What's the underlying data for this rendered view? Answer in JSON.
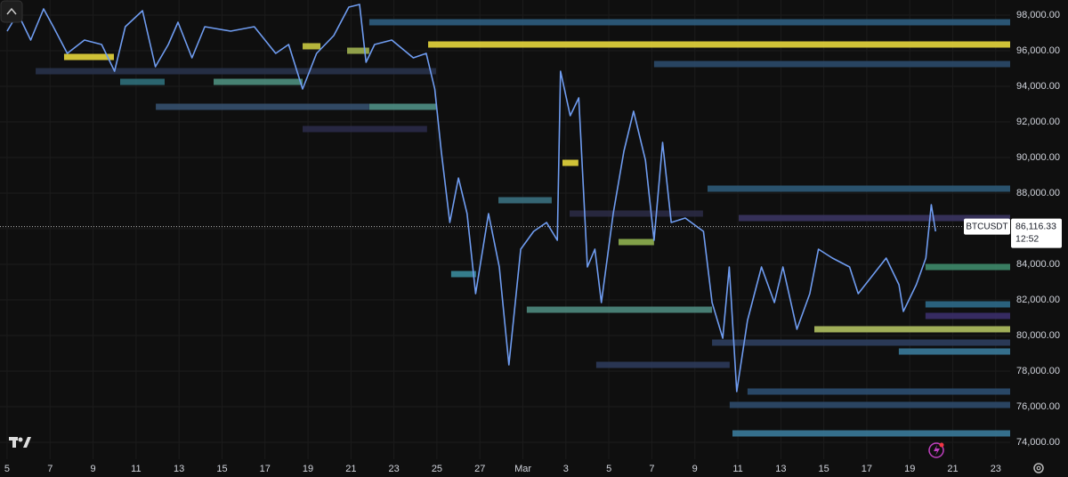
{
  "chart_data": {
    "type": "line",
    "symbol": "BTCUSDT",
    "last_price": {
      "value": 86116.33,
      "label": "86,116.33"
    },
    "countdown": "12:52",
    "color": "#6f9cf0",
    "x": [
      0,
      0.5,
      1.1,
      1.7,
      2.15,
      2.8,
      3.6,
      4.4,
      5.0,
      5.5,
      6.3,
      6.9,
      7.5,
      7.95,
      8.6,
      9.2,
      10.4,
      11.5,
      12.5,
      13.1,
      13.75,
      14.4,
      15.2,
      15.9,
      16.4,
      16.7,
      17.1,
      17.9,
      18.9,
      19.5,
      19.9,
      20.2,
      20.6,
      21.0,
      21.4,
      21.8,
      22.4,
      22.9,
      23.35,
      23.9,
      24.5,
      25.1,
      25.6,
      25.75,
      26.2,
      26.6,
      27.0,
      27.35,
      27.65,
      28.2,
      28.7,
      29.15,
      29.7,
      30.1,
      30.5,
      30.9,
      31.55,
      32.4,
      32.8,
      33.3,
      33.6,
      33.95,
      34.45,
      35.1,
      35.7,
      36.1,
      36.75,
      37.35,
      37.75,
      38.4,
      39.2,
      39.6,
      40.25,
      40.9,
      41.5,
      41.7,
      42.3,
      42.75,
      43.0,
      43.2
    ],
    "values": [
      97100,
      98100,
      96600,
      98350,
      97350,
      95850,
      96600,
      96350,
      94850,
      97350,
      98250,
      95100,
      96350,
      97600,
      95600,
      97350,
      97100,
      97350,
      95850,
      96350,
      93850,
      95850,
      96850,
      98450,
      98600,
      95350,
      96350,
      96600,
      95600,
      95850,
      93850,
      90350,
      86350,
      88850,
      86850,
      82350,
      86850,
      83850,
      78350,
      84850,
      85850,
      86350,
      85350,
      94850,
      92350,
      93350,
      83850,
      84850,
      81850,
      86850,
      90350,
      92600,
      89850,
      85350,
      90850,
      86350,
      86600,
      85850,
      81850,
      79850,
      83850,
      76850,
      80850,
      83850,
      81850,
      83850,
      80350,
      82350,
      84850,
      84350,
      83850,
      82350,
      83350,
      84350,
      82850,
      81350,
      82850,
      84350,
      87350,
      85850
    ],
    "levels": [
      {
        "price": 96350,
        "start": 19.59,
        "end": 46.67,
        "color": "#e6d63c"
      },
      {
        "price": 95650,
        "start": 2.65,
        "end": 4.97,
        "color": "#e6d63c"
      },
      {
        "price": 97600,
        "start": 16.85,
        "end": 46.67,
        "color": "#2e5d80"
      },
      {
        "price": 95250,
        "start": 30.1,
        "end": 46.67,
        "color": "#2b4a6a"
      },
      {
        "price": 94250,
        "start": 5.26,
        "end": 7.33,
        "color": "#2f6f7a"
      },
      {
        "price": 94250,
        "start": 9.61,
        "end": 13.75,
        "color": "#4e8f7e"
      },
      {
        "price": 92850,
        "start": 16.85,
        "end": 19.96,
        "color": "#4f8f85"
      },
      {
        "price": 92850,
        "start": 6.92,
        "end": 16.85,
        "color": "#35506e"
      },
      {
        "price": 96000,
        "start": 15.82,
        "end": 16.85,
        "color": "#9fb050"
      },
      {
        "price": 96250,
        "start": 13.75,
        "end": 14.58,
        "color": "#c8c840"
      },
      {
        "price": 89700,
        "start": 25.84,
        "end": 26.58,
        "color": "#e6d63c"
      },
      {
        "price": 87600,
        "start": 22.86,
        "end": 25.34,
        "color": "#3a7080"
      },
      {
        "price": 88250,
        "start": 32.59,
        "end": 46.67,
        "color": "#2e5a78"
      },
      {
        "price": 83850,
        "start": 42.73,
        "end": 46.67,
        "color": "#3e8a6a"
      },
      {
        "price": 85250,
        "start": 28.45,
        "end": 30.1,
        "color": "#8fb050"
      },
      {
        "price": 83450,
        "start": 20.66,
        "end": 21.82,
        "color": "#3a8a9a"
      },
      {
        "price": 81450,
        "start": 24.18,
        "end": 32.8,
        "color": "#4e8a7e"
      },
      {
        "price": 81750,
        "start": 42.73,
        "end": 46.67,
        "color": "#2e6a8a"
      },
      {
        "price": 80350,
        "start": 37.56,
        "end": 46.67,
        "color": "#b0c060"
      },
      {
        "price": 79100,
        "start": 41.49,
        "end": 46.67,
        "color": "#3a7a9a"
      },
      {
        "price": 74500,
        "start": 33.75,
        "end": 46.67,
        "color": "#3a7a9a"
      },
      {
        "price": 76850,
        "start": 34.45,
        "end": 46.67,
        "color": "#2c4e70"
      },
      {
        "price": 76100,
        "start": 33.62,
        "end": 46.67,
        "color": "#2e4a6a"
      },
      {
        "price": 78350,
        "start": 27.41,
        "end": 33.62,
        "color": "#2c3a5a"
      },
      {
        "price": 86600,
        "start": 34.04,
        "end": 46.67,
        "color": "#3a3460"
      },
      {
        "price": 81100,
        "start": 42.73,
        "end": 46.67,
        "color": "#3b2f6a"
      },
      {
        "price": 91600,
        "start": 13.75,
        "end": 19.54,
        "color": "#2a2a48"
      },
      {
        "price": 94850,
        "start": 1.33,
        "end": 19.96,
        "color": "#28324a"
      },
      {
        "price": 86850,
        "start": 26.17,
        "end": 32.38,
        "color": "#2a2a44"
      },
      {
        "price": 79600,
        "start": 32.8,
        "end": 46.67,
        "color": "#2e3e5e"
      }
    ],
    "xlim": [
      -0.33,
      46.67
    ],
    "ylim": [
      73050,
      98850
    ],
    "xticks": [
      {
        "value": 0,
        "label": "5"
      },
      {
        "value": 2,
        "label": "7"
      },
      {
        "value": 4,
        "label": "9"
      },
      {
        "value": 6,
        "label": "11"
      },
      {
        "value": 8,
        "label": "13"
      },
      {
        "value": 10,
        "label": "15"
      },
      {
        "value": 12,
        "label": "17"
      },
      {
        "value": 14,
        "label": "19"
      },
      {
        "value": 16,
        "label": "21"
      },
      {
        "value": 18,
        "label": "23"
      },
      {
        "value": 20,
        "label": "25"
      },
      {
        "value": 22,
        "label": "27"
      },
      {
        "value": 24,
        "label": "Mar"
      },
      {
        "value": 26,
        "label": "3"
      },
      {
        "value": 28,
        "label": "5"
      },
      {
        "value": 30,
        "label": "7"
      },
      {
        "value": 32,
        "label": "9"
      },
      {
        "value": 34,
        "label": "11"
      },
      {
        "value": 36,
        "label": "13"
      },
      {
        "value": 38,
        "label": "15"
      },
      {
        "value": 40,
        "label": "17"
      },
      {
        "value": 42,
        "label": "19"
      },
      {
        "value": 44,
        "label": "21"
      },
      {
        "value": 46,
        "label": "23"
      }
    ],
    "yticks": [
      {
        "value": 74000,
        "label": "74,000.00"
      },
      {
        "value": 76000,
        "label": "76,000.00"
      },
      {
        "value": 78000,
        "label": "78,000.00"
      },
      {
        "value": 80000,
        "label": "80,000.00"
      },
      {
        "value": 82000,
        "label": "82,000.00"
      },
      {
        "value": 84000,
        "label": "84,000.00"
      },
      {
        "value": 86000,
        "label": "86,000.00"
      },
      {
        "value": 88000,
        "label": "88,000.00"
      },
      {
        "value": 90000,
        "label": "90,000.00"
      },
      {
        "value": 92000,
        "label": "92,000.00"
      },
      {
        "value": 94000,
        "label": "94,000.00"
      },
      {
        "value": 96000,
        "label": "96,000.00"
      },
      {
        "value": 98000,
        "label": "98,000.00"
      }
    ],
    "grid": true
  }
}
